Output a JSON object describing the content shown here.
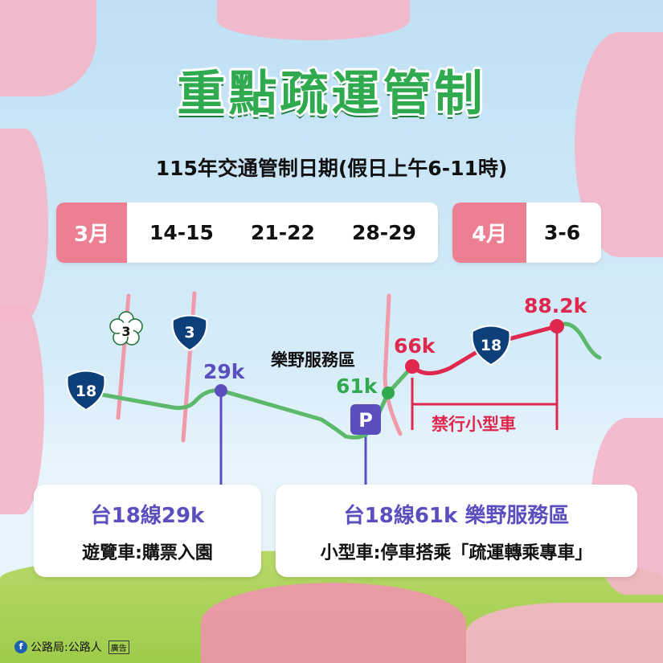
{
  "title": "重點疏運管制",
  "subtitle": "115年交通管制日期(假日上午6-11時)",
  "dates": {
    "march": {
      "label": "3月",
      "days": [
        "14-15",
        "21-22",
        "28-29"
      ]
    },
    "april": {
      "label": "4月",
      "days": [
        "3-6"
      ]
    }
  },
  "map": {
    "shield_18": "18",
    "shield_3_county": "3",
    "shield_3_provincial": "3",
    "shield_18_b": "18",
    "km_29": "29k",
    "service_area": "樂野服務區",
    "km_61": "61k",
    "km_66": "66k",
    "km_88": "88.2k",
    "parking": "P",
    "restriction": "禁行小型車"
  },
  "cards": [
    {
      "heading": "台18線29k",
      "text": "遊覽車:購票入園"
    },
    {
      "heading": "台18線61k 樂野服務區",
      "text": "小型車:停車搭乘「疏運轉乘專車」"
    }
  ],
  "credit": {
    "text": "公路局:公路人",
    "badge": "廣告",
    "icon": "facebook-icon"
  },
  "colors": {
    "green": "#2faa4f",
    "route": "#5cb86a",
    "purple": "#5b4fc0",
    "red": "#e0284f",
    "pink": "#ec7f92",
    "shield": "#0d3f7a"
  }
}
